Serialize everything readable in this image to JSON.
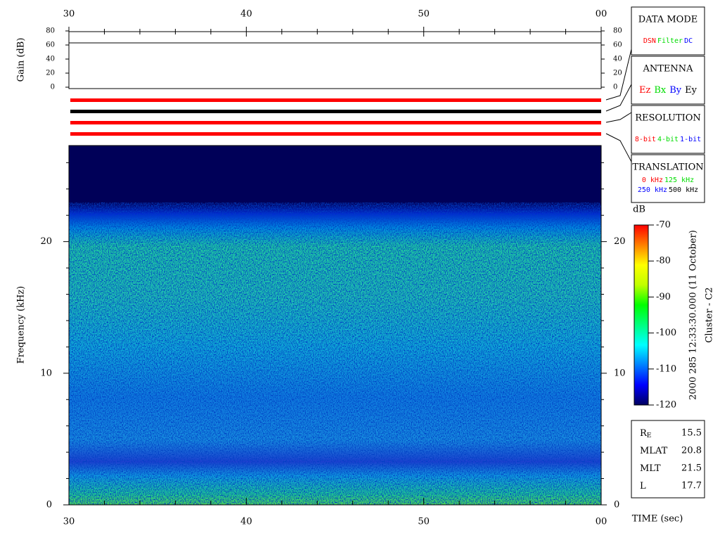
{
  "chart_data": {
    "type": "spectrogram",
    "xlim": [
      30,
      60
    ],
    "xticks": [
      30,
      40,
      50,
      {
        "value": 60,
        "label": "00"
      }
    ],
    "xminor_ticks": [
      32,
      34,
      36,
      38,
      42,
      44,
      46,
      48,
      52,
      54,
      56,
      58
    ],
    "xlabel": "TIME (sec)",
    "ylabel": "Frequency (kHz)",
    "ylim": [
      0,
      27.3
    ],
    "yticks": [
      0,
      10,
      20
    ],
    "yminor_ticks": [
      2,
      4,
      6,
      8,
      12,
      14,
      16,
      18,
      22,
      24,
      26
    ],
    "gain": {
      "ylabel": "Gain (dB)",
      "ylim": [
        0,
        80
      ],
      "yticks": [
        0,
        20,
        40,
        60,
        80
      ],
      "x": [
        30,
        60
      ],
      "values": [
        63,
        63
      ],
      "color": "#000000"
    },
    "colorbar": {
      "label": "dB",
      "lim": [
        -120,
        -70
      ],
      "ticks": [
        -70,
        -80,
        -90,
        -100,
        -110,
        -120
      ],
      "colors": [
        "#000060",
        "#0000ff",
        "#0080ff",
        "#00ffff",
        "#00ff80",
        "#00ff00",
        "#c0ff00",
        "#ffff00",
        "#ff8000",
        "#ff0000"
      ]
    },
    "annotations": [
      "2000 285 12:33:30.000 (11 October)",
      "Cluster - C2"
    ],
    "status_bars": [
      "#ff0000",
      "#000000",
      "#ff0000",
      "#ff0000"
    ]
  },
  "panels": [
    {
      "title": "DATA MODE",
      "rows": [
        [
          {
            "text": "DSN",
            "color": "#ff0000"
          },
          {
            "text": "Filter",
            "color": "#00dd00"
          },
          {
            "text": "DC",
            "color": "#0000ff"
          }
        ]
      ]
    },
    {
      "title": "ANTENNA",
      "rows": [
        [
          {
            "text": "Ez",
            "color": "#ff0000"
          },
          {
            "text": "Bx",
            "color": "#00dd00"
          },
          {
            "text": "By",
            "color": "#0000ff"
          },
          {
            "text": "Ey",
            "color": "#000000"
          }
        ]
      ]
    },
    {
      "title": "RESOLUTION",
      "rows": [
        [
          {
            "text": "8-bit",
            "color": "#ff0000"
          },
          {
            "text": "4-bit",
            "color": "#00dd00"
          },
          {
            "text": "1-bit",
            "color": "#0000ff"
          }
        ]
      ]
    },
    {
      "title": "TRANSLATION",
      "rows": [
        [
          {
            "text": "0 kHz",
            "color": "#ff0000"
          },
          {
            "text": "125 kHz",
            "color": "#00dd00"
          }
        ],
        [
          {
            "text": "250 kHz",
            "color": "#0000ff"
          },
          {
            "text": "500 kHz",
            "color": "#000000"
          }
        ]
      ]
    }
  ],
  "orbit": [
    {
      "label": "R",
      "sub": "E",
      "value": 15.5
    },
    {
      "label": "MLAT",
      "value": 20.8
    },
    {
      "label": "MLT",
      "value": 21.5
    },
    {
      "label": "L",
      "value": 17.7
    }
  ]
}
